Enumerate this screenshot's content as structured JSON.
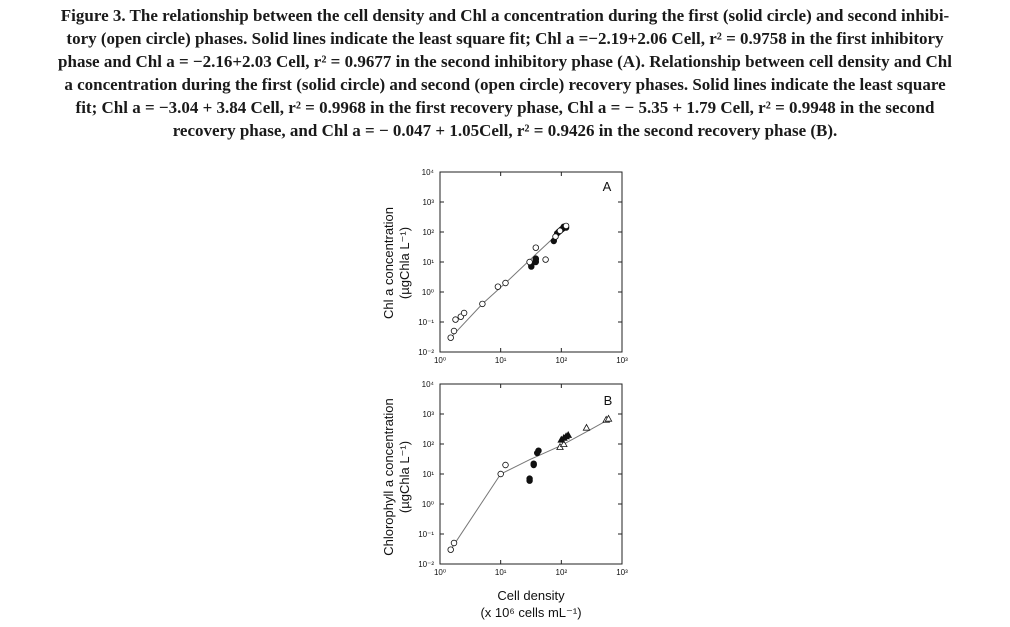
{
  "caption": {
    "lines": [
      "Figure 3. The relationship between the cell density and Chl a concentration during the first (solid circle) and second inhibi-",
      "tory (open circle) phases. Solid lines indicate the least square fit; Chl a =−2.19+2.06 Cell, r² = 0.9758 in the first inhibitory",
      "phase and Chl a = −2.16+2.03 Cell, r² = 0.9677 in the second inhibitory phase (A). Relationship between cell density and Chl",
      "a concentration during the first (solid circle) and second (open circle) recovery phases. Solid lines indicate the least square",
      "fit; Chl a = −3.04 + 3.84 Cell, r² = 0.9968 in the first recovery phase, Chl a = − 5.35 + 1.79 Cell, r² = 0.9948 in the second",
      "recovery phase, and Chl a = − 0.047 + 1.05Cell, r² = 0.9426 in the second recovery phase (B)."
    ]
  },
  "chart_data": [
    {
      "type": "scatter",
      "panel": "A",
      "ylabel_line1": "Chl a concentration",
      "ylabel_line2": "(µgChla L⁻¹)",
      "xscale": "log",
      "yscale": "log",
      "xlim": [
        1,
        1000
      ],
      "ylim": [
        0.01,
        10000
      ],
      "xticks": [
        "10⁰",
        "10¹",
        "10²",
        "10³"
      ],
      "yticks": [
        "10⁻²",
        "10⁻¹",
        "10⁰",
        "10¹",
        "10²",
        "10³",
        "10⁴"
      ],
      "series": [
        {
          "marker": "filled-circle",
          "points": [
            [
              32,
              7
            ],
            [
              32,
              8
            ],
            [
              38,
              10
            ],
            [
              38,
              12
            ],
            [
              38,
              13
            ],
            [
              75,
              50
            ],
            [
              85,
              90
            ],
            [
              90,
              100
            ],
            [
              100,
              120
            ],
            [
              105,
              130
            ],
            [
              110,
              150
            ],
            [
              120,
              140
            ]
          ]
        },
        {
          "marker": "open-circle",
          "points": [
            [
              1.5,
              0.03
            ],
            [
              1.7,
              0.05
            ],
            [
              1.8,
              0.12
            ],
            [
              2.2,
              0.15
            ],
            [
              2.5,
              0.2
            ],
            [
              5,
              0.4
            ],
            [
              9,
              1.5
            ],
            [
              12,
              2
            ],
            [
              30,
              10
            ],
            [
              38,
              30
            ],
            [
              55,
              12
            ],
            [
              80,
              70
            ],
            [
              95,
              110
            ],
            [
              120,
              160
            ]
          ]
        }
      ],
      "fit_line": [
        [
          1.5,
          0.03
        ],
        [
          5,
          0.4
        ],
        [
          12,
          2
        ],
        [
          40,
          20
        ],
        [
          130,
          180
        ]
      ]
    },
    {
      "type": "scatter",
      "panel": "B",
      "xlabel_line1": "Cell density",
      "xlabel_line2": "(x 10⁶ cells mL⁻¹)",
      "ylabel_line1": "Chlorophyll a concentration",
      "ylabel_line2": "(µgChla L⁻¹)",
      "xscale": "log",
      "yscale": "log",
      "xlim": [
        1,
        1000
      ],
      "ylim": [
        0.01,
        10000
      ],
      "xticks": [
        "10⁰",
        "10¹",
        "10²",
        "10³"
      ],
      "yticks": [
        "10⁻²",
        "10⁻¹",
        "10⁰",
        "10¹",
        "10²",
        "10³",
        "10⁴"
      ],
      "series": [
        {
          "marker": "open-circle",
          "points": [
            [
              1.5,
              0.03
            ],
            [
              1.7,
              0.05
            ],
            [
              10,
              10
            ],
            [
              12,
              20
            ]
          ]
        },
        {
          "marker": "filled-circle",
          "points": [
            [
              30,
              6
            ],
            [
              30,
              7
            ],
            [
              35,
              20
            ],
            [
              35,
              22
            ],
            [
              40,
              50
            ],
            [
              42,
              60
            ]
          ]
        },
        {
          "marker": "open-triangle",
          "points": [
            [
              95,
              80
            ],
            [
              110,
              100
            ],
            [
              260,
              350
            ],
            [
              550,
              650
            ],
            [
              600,
              700
            ]
          ]
        },
        {
          "marker": "filled-triangle",
          "points": [
            [
              100,
              140
            ],
            [
              110,
              160
            ],
            [
              120,
              180
            ],
            [
              130,
              200
            ]
          ]
        }
      ],
      "fit_line": [
        [
          1.5,
          0.03
        ],
        [
          10,
          10
        ],
        [
          30,
          30
        ],
        [
          100,
          90
        ],
        [
          300,
          300
        ],
        [
          600,
          650
        ]
      ]
    }
  ]
}
